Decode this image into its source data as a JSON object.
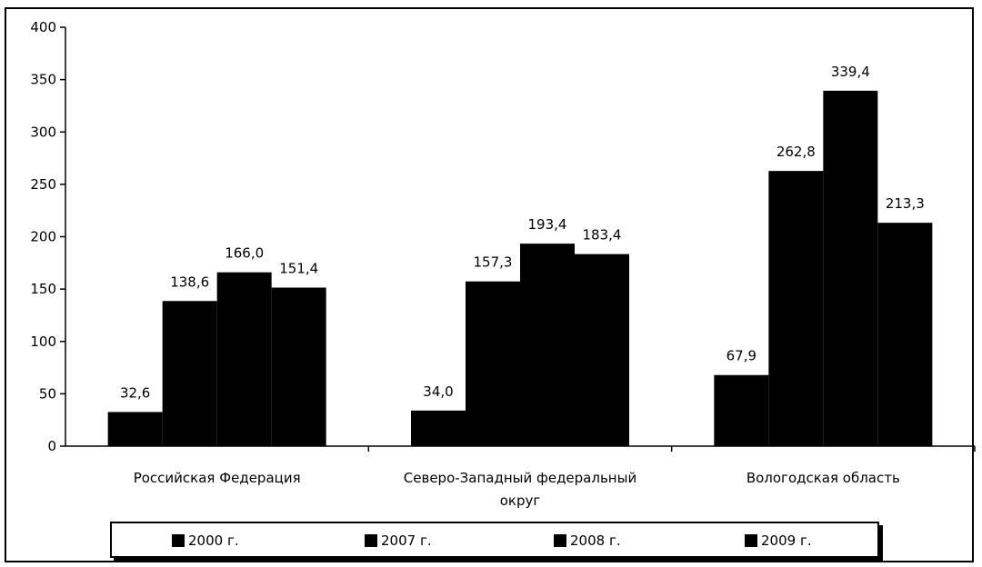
{
  "chart_data": {
    "type": "bar",
    "categories": [
      [
        "Российская Федерация"
      ],
      [
        "Северо-Западный федеральный",
        "округ"
      ],
      [
        "Вологодская область"
      ]
    ],
    "series": [
      {
        "name": "2000 г.",
        "values": [
          32.6,
          34.0,
          67.9
        ],
        "labels": [
          "32,6",
          "34,0",
          "67,9"
        ]
      },
      {
        "name": "2007 г.",
        "values": [
          138.6,
          157.3,
          262.8
        ],
        "labels": [
          "138,6",
          "157,3",
          "262,8"
        ]
      },
      {
        "name": "2008 г.",
        "values": [
          166.0,
          193.4,
          339.4
        ],
        "labels": [
          "166,0",
          "193,4",
          "339,4"
        ]
      },
      {
        "name": "2009 г.",
        "values": [
          151.4,
          183.4,
          213.3
        ],
        "labels": [
          "151,4",
          "183,4",
          "213,3"
        ]
      }
    ],
    "ylim": [
      0,
      400
    ],
    "yticks": [
      0,
      50,
      100,
      150,
      200,
      250,
      300,
      350,
      400
    ],
    "legend_position": "bottom",
    "grid": false,
    "colors": {
      "bars": "#000000",
      "background": "#ffffff"
    }
  }
}
